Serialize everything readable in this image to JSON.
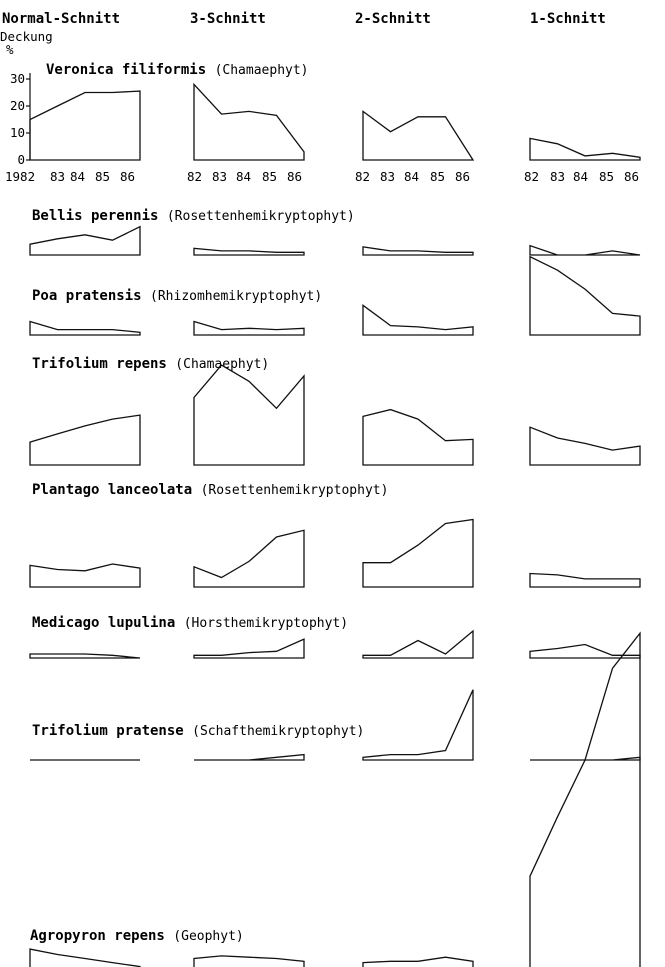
{
  "chart_data": {
    "type": "line",
    "headers": [
      "Normal-Schnitt",
      "3-Schnitt",
      "2-Schnitt",
      "1-Schnitt"
    ],
    "ylabel": "Deckung",
    "yunit": "%",
    "years": [
      "1982",
      "83",
      "84",
      "85",
      "86"
    ],
    "yticks": [
      "0",
      "10",
      "20",
      "30"
    ],
    "ylim": [
      0,
      30
    ],
    "species": [
      {
        "name": "Veronica filiformis",
        "life_form": "(Chamaephyt)",
        "values": [
          [
            15,
            20,
            25,
            25,
            25.5
          ],
          [
            28,
            17,
            18,
            16.5,
            3
          ],
          [
            18,
            10.5,
            16,
            16,
            0
          ],
          [
            8,
            6,
            1.5,
            2.5,
            1
          ]
        ]
      },
      {
        "name": "Bellis perennis",
        "life_form": "(Rosettenhemikryptophyt)",
        "values": [
          [
            4,
            6,
            7.5,
            5.5,
            10.5
          ],
          [
            2.5,
            1.5,
            1.5,
            1,
            1
          ],
          [
            3,
            1.5,
            1.5,
            1,
            1
          ],
          [
            3.5,
            0,
            0,
            1.5,
            0
          ]
        ]
      },
      {
        "name": "Poa pratensis",
        "life_form": "(Rhizomhemikryptophyt)",
        "values": [
          [
            5,
            2,
            2,
            2,
            1
          ],
          [
            5,
            2,
            2.5,
            2,
            2.5
          ],
          [
            11,
            3.5,
            3,
            2,
            3
          ],
          [
            29,
            24,
            17,
            8,
            7
          ]
        ]
      },
      {
        "name": "Trifolium repens",
        "life_form": "(Chamaephyt)",
        "values": [
          [
            8.5,
            11.5,
            14.5,
            17,
            18.5
          ],
          [
            25,
            37,
            31,
            21,
            33
          ],
          [
            18,
            20.5,
            17,
            9,
            9.5
          ],
          [
            14,
            10,
            8,
            5.5,
            7
          ]
        ]
      },
      {
        "name": "Plantago lanceolata",
        "life_form": "(Rosettenhemikryptophyt)",
        "values": [
          [
            8,
            6.5,
            6,
            8.5,
            7
          ],
          [
            7.5,
            3.5,
            9.5,
            18.5,
            21
          ],
          [
            9,
            9,
            15.5,
            23.5,
            25
          ],
          [
            5,
            4.5,
            3,
            3,
            3
          ]
        ]
      },
      {
        "name": "Medicago lupulina",
        "life_form": "(Horsthemikryptophyt)",
        "values": [
          [
            1.5,
            1.5,
            1.5,
            1,
            0
          ],
          [
            1,
            1,
            2,
            2.5,
            7
          ],
          [
            1,
            1,
            6.5,
            1.5,
            10
          ],
          [
            2.5,
            3.5,
            5,
            1,
            1
          ]
        ]
      },
      {
        "name": "Trifolium pratense",
        "life_form": "(Schafthemikryptophyt)",
        "values": [
          [
            0,
            0,
            0,
            0,
            0
          ],
          [
            0,
            0,
            0,
            1,
            2
          ],
          [
            1,
            2,
            2,
            3.5,
            26
          ],
          [
            0,
            0,
            0,
            0,
            1
          ]
        ]
      },
      {
        "name": "Agropyron repens",
        "life_form": "(Geophyt)",
        "values": [
          [
            7,
            5,
            3.5,
            2,
            0.5
          ],
          [
            3.5,
            4.5,
            4,
            3.5,
            2.5
          ],
          [
            2,
            2.5,
            2.5,
            4,
            2.5
          ],
          [
            34,
            56,
            77,
            111,
            124
          ]
        ]
      }
    ]
  }
}
